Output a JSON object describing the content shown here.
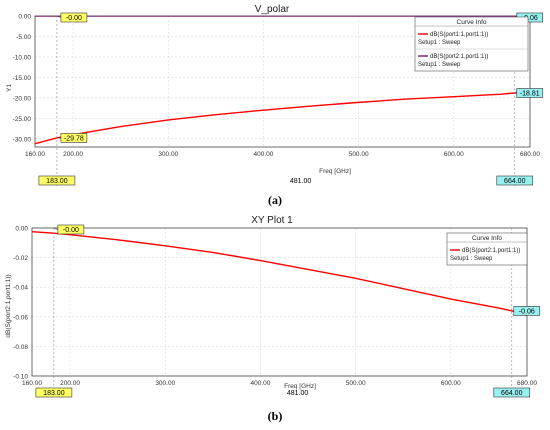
{
  "chart_data": [
    {
      "type": "line",
      "title": "V_polar",
      "xlabel": "Freq [GHz]",
      "ylabel": "Y1",
      "xlim": [
        160,
        680
      ],
      "ylim": [
        -32,
        0
      ],
      "x_ticks": [
        "160.00",
        "200.00",
        "300.00",
        "400.00",
        "500.00",
        "600.00",
        "680.00"
      ],
      "y_ticks": [
        "0.00",
        "-5.00",
        "-10.00",
        "-15.00",
        "-20.00",
        "-25.00",
        "-30.00"
      ],
      "legend_title": "Curve Info",
      "legend": [
        {
          "line1": "dB(S(port1:1,port1:1))",
          "line2": "Setup1 : Sweep",
          "color": "#ff0000"
        },
        {
          "line1": "dB(S(port2:1,port1:1))",
          "line2": "Setup1 : Sweep",
          "color": "#7a1a6e"
        }
      ],
      "series": [
        {
          "name": "dB(S(port1:1,port1:1))",
          "color": "#ff0000",
          "x": [
            160,
            183,
            200,
            250,
            300,
            350,
            400,
            450,
            500,
            550,
            600,
            650,
            664,
            680
          ],
          "y": [
            -31.2,
            -29.78,
            -29.0,
            -27.0,
            -25.4,
            -24.1,
            -23.0,
            -22.0,
            -21.1,
            -20.3,
            -19.7,
            -19.1,
            -18.81,
            -18.5
          ]
        },
        {
          "name": "dB(S(port2:1,port1:1))",
          "color": "#7a1a6e",
          "x": [
            160,
            680
          ],
          "y": [
            -0.05,
            -0.06
          ]
        }
      ],
      "cursor_left": "183.00",
      "cursor_mid": "481.00",
      "cursor_right": "664.00",
      "markers": [
        {
          "label": "-0.00",
          "x": 183,
          "y": 0
        },
        {
          "label": "-29.78",
          "x": 183,
          "y": -29.78
        },
        {
          "label": "-0.06",
          "x": 664,
          "y": 0
        },
        {
          "label": "-18.81",
          "x": 664,
          "y": -18.81
        }
      ],
      "caption": "(a)"
    },
    {
      "type": "line",
      "title": "XY Plot 1",
      "xlabel": "Freq [GHz]",
      "ylabel": "dB(S(port2:1,port1:1))",
      "xlim": [
        160,
        680
      ],
      "ylim": [
        -0.1,
        0
      ],
      "x_ticks": [
        "160.00",
        "200.00",
        "300.00",
        "400.00",
        "500.00",
        "600.00",
        "680.00"
      ],
      "y_ticks": [
        "0.00",
        "-0.02",
        "-0.04",
        "-0.06",
        "-0.08",
        "-0.10"
      ],
      "legend_title": "Curve Info",
      "legend": [
        {
          "line1": "dB(S(port2:1,port1:1))",
          "line2": "Setup1 : Sweep",
          "color": "#ff0000"
        }
      ],
      "series": [
        {
          "name": "dB(S(port2:1,port1:1))",
          "color": "#ff0000",
          "x": [
            160,
            183,
            200,
            250,
            300,
            350,
            400,
            450,
            500,
            550,
            600,
            650,
            664,
            680
          ],
          "y": [
            -0.0025,
            -0.0035,
            -0.0045,
            -0.008,
            -0.012,
            -0.0165,
            -0.022,
            -0.028,
            -0.034,
            -0.041,
            -0.048,
            -0.054,
            -0.056,
            -0.059
          ]
        }
      ],
      "cursor_left": "183.00",
      "cursor_mid": "481.00",
      "cursor_right": "664.00",
      "markers": [
        {
          "label": "-0.00",
          "x": 183,
          "y": 0
        },
        {
          "label": "-0.06",
          "x": 664,
          "y": -0.056
        }
      ],
      "caption": "(b)"
    }
  ]
}
